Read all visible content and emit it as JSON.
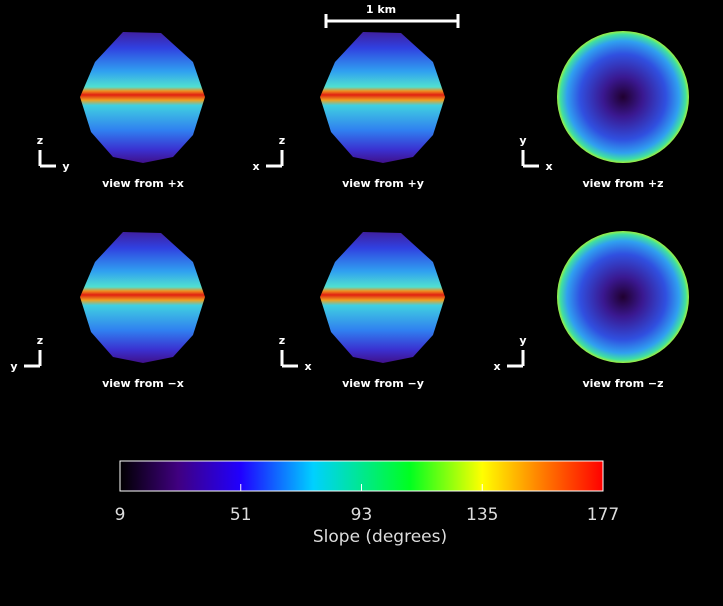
{
  "scale_bar": "1 km",
  "views": [
    {
      "label": "view from +x",
      "up": "z",
      "side": "y"
    },
    {
      "label": "view from +y",
      "up": "z",
      "side": "x"
    },
    {
      "label": "view from +z",
      "up": "y",
      "side": "x"
    },
    {
      "label": "view from −x",
      "up": "z",
      "side": "y"
    },
    {
      "label": "view from −y",
      "up": "z",
      "side": "x"
    },
    {
      "label": "view from −z",
      "up": "y",
      "side": "x"
    }
  ],
  "colorbar": {
    "label": "Slope (degrees)",
    "ticks": [
      9,
      51,
      93,
      135,
      177
    ]
  }
}
